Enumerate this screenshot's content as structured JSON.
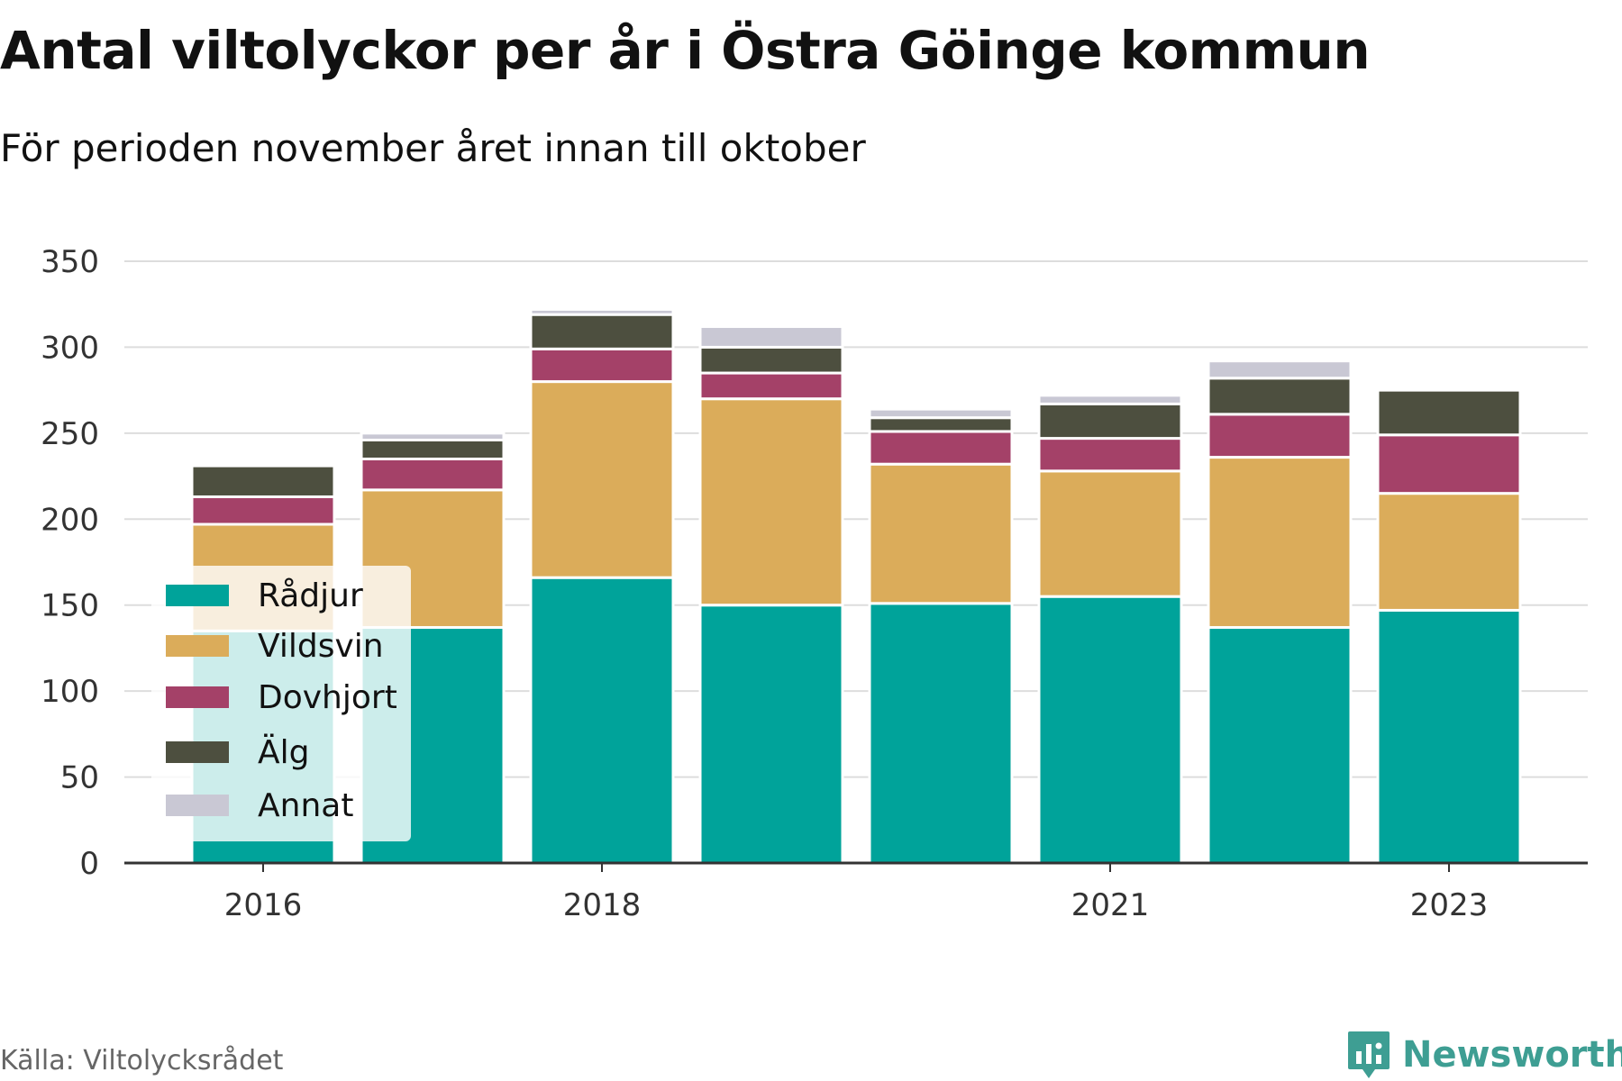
{
  "title": "Antal viltolyckor per år i Östra Göinge kommun",
  "subtitle": "För perioden november året innan till oktober",
  "source": "Källa: Viltolycksrådet",
  "brand": "Newsworthy",
  "chart_data": {
    "type": "bar",
    "stacked": true,
    "categories": [
      "2016",
      "2017",
      "2018",
      "2019",
      "2020",
      "2021",
      "2022",
      "2023"
    ],
    "tick_labels": [
      "2016",
      "2018",
      "2021",
      "2023"
    ],
    "y_ticks": [
      "0",
      "50",
      "100",
      "150",
      "200",
      "250",
      "300",
      "350"
    ],
    "ylim": [
      0,
      350
    ],
    "grid": true,
    "legend_position": "bottom-left",
    "series": [
      {
        "name": "Rådjur",
        "color": "#00a39a",
        "values": [
          135,
          137,
          166,
          150,
          151,
          155,
          137,
          147
        ]
      },
      {
        "name": "Vildsvin",
        "color": "#dbac5a",
        "values": [
          62,
          80,
          114,
          120,
          81,
          73,
          99,
          68
        ]
      },
      {
        "name": "Dovhjort",
        "color": "#a44168",
        "values": [
          16,
          18,
          19,
          15,
          19,
          19,
          25,
          34
        ]
      },
      {
        "name": "Älg",
        "color": "#4d4f3f",
        "values": [
          18,
          11,
          20,
          15,
          8,
          20,
          21,
          26
        ]
      },
      {
        "name": "Annat",
        "color": "#c9c8d4",
        "values": [
          0,
          4,
          3,
          12,
          5,
          5,
          10,
          0
        ]
      }
    ]
  }
}
